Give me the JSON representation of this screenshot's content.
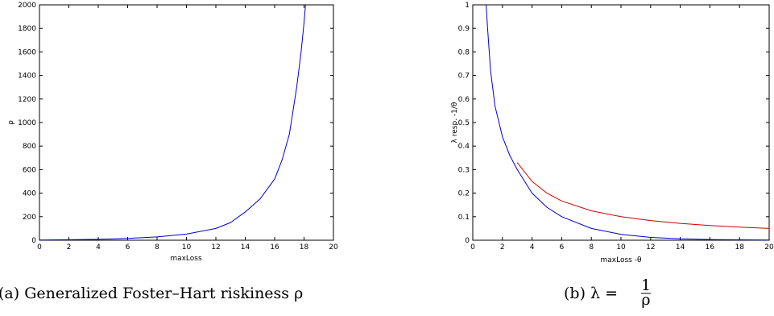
{
  "chart_data": [
    {
      "type": "line",
      "xlabel": "maxLoss",
      "ylabel": "ρ",
      "xlim": [
        0,
        20
      ],
      "ylim": [
        0,
        2000
      ],
      "xticks": [
        "0",
        "2",
        "4",
        "6",
        "8",
        "10",
        "12",
        "14",
        "16",
        "18",
        "20"
      ],
      "yticks": [
        "0",
        "200",
        "400",
        "600",
        "800",
        "1000",
        "1200",
        "1400",
        "1600",
        "1800",
        "2000"
      ],
      "series": [
        {
          "color": "#0000cc",
          "x": [
            0,
            2,
            4,
            6,
            8,
            10,
            12,
            13,
            14,
            15,
            16,
            16.5,
            17,
            17.5,
            17.8,
            18.0,
            18.1
          ],
          "y": [
            2,
            4,
            8,
            15,
            28,
            52,
            100,
            150,
            240,
            350,
            520,
            680,
            900,
            1300,
            1600,
            1850,
            2000
          ]
        }
      ],
      "caption": "(a) Generalized Foster–Hart riskiness ρ"
    },
    {
      "type": "line",
      "xlabel": "maxLoss -θ",
      "ylabel": "λ resp. -1/θ",
      "xlim": [
        0,
        20
      ],
      "ylim": [
        0,
        1
      ],
      "xticks": [
        "0",
        "2",
        "4",
        "6",
        "8",
        "10",
        "12",
        "14",
        "16",
        "18",
        "20"
      ],
      "yticks": [
        "0",
        "0.1",
        "0.2",
        "0.3",
        "0.4",
        "0.5",
        "0.6",
        "0.7",
        "0.8",
        "0.9",
        "1"
      ],
      "series": [
        {
          "color": "#0000cc",
          "x": [
            0.9,
            1.0,
            1.2,
            1.5,
            2,
            2.5,
            3,
            4,
            5,
            6,
            8,
            10,
            12,
            14,
            16,
            18,
            20
          ],
          "y": [
            1.0,
            0.9,
            0.72,
            0.57,
            0.44,
            0.36,
            0.3,
            0.2,
            0.14,
            0.1,
            0.05,
            0.025,
            0.012,
            0.006,
            0.003,
            0.0015,
            0.001
          ]
        },
        {
          "color": "#cc0000",
          "x": [
            3,
            4,
            5,
            6,
            8,
            10,
            12,
            14,
            16,
            18,
            20
          ],
          "y": [
            0.33,
            0.25,
            0.2,
            0.1667,
            0.125,
            0.1,
            0.0833,
            0.0714,
            0.0625,
            0.0556,
            0.05
          ]
        }
      ],
      "caption_prefix": "(b) λ = ",
      "caption_frac_num": "1",
      "caption_frac_den": "ρ"
    }
  ]
}
